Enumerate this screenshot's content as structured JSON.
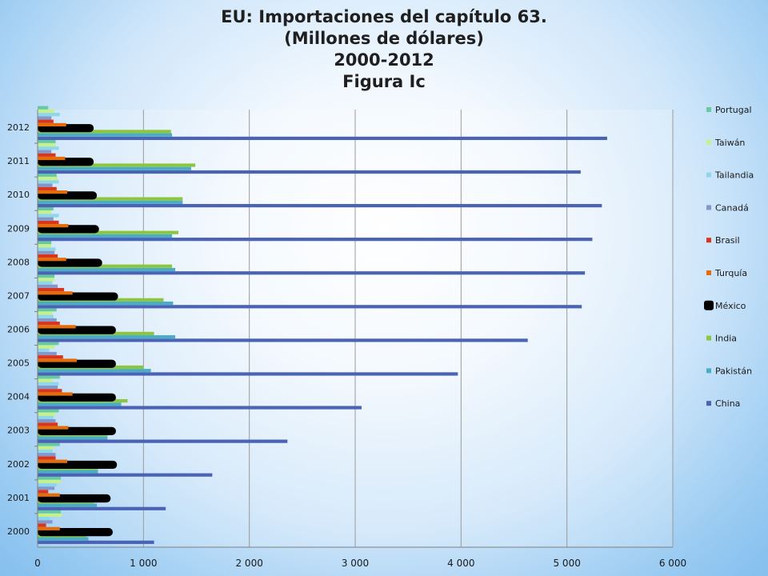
{
  "chart_data": {
    "type": "bar",
    "orientation": "horizontal",
    "title_lines": [
      "EU: Importaciones del capítulo 63.",
      "(Millones de dólares)",
      "2000-2012",
      "Figura Ic"
    ],
    "xlabel": "",
    "ylabel": "",
    "xlim": [
      0,
      6000
    ],
    "x_ticks": [
      0,
      1000,
      2000,
      3000,
      4000,
      5000,
      6000
    ],
    "x_tick_labels": [
      "0",
      "1 000",
      "2 000",
      "3 000",
      "4 000",
      "5 000",
      "6 000"
    ],
    "grid": "vertical",
    "legend_position": "right",
    "categories": [
      "2000",
      "2001",
      "2002",
      "2003",
      "2004",
      "2005",
      "2006",
      "2007",
      "2008",
      "2009",
      "2010",
      "2011",
      "2012"
    ],
    "series": [
      {
        "name": "China",
        "color": "#4a63b5",
        "values": [
          1100,
          1210,
          1650,
          2360,
          3060,
          3970,
          4630,
          5140,
          5170,
          5240,
          5330,
          5130,
          5380
        ]
      },
      {
        "name": "Pakistán",
        "color": "#4bacc6",
        "values": [
          480,
          560,
          570,
          660,
          790,
          1070,
          1300,
          1280,
          1300,
          1270,
          1370,
          1450,
          1270
        ]
      },
      {
        "name": "India",
        "color": "#8cc63f",
        "values": [
          460,
          530,
          570,
          660,
          850,
          1000,
          1100,
          1190,
          1270,
          1330,
          1370,
          1490,
          1260
        ]
      },
      {
        "name": "México",
        "color": "#000000",
        "values": [
          710,
          690,
          750,
          740,
          740,
          740,
          740,
          760,
          610,
          580,
          560,
          530,
          530
        ]
      },
      {
        "name": "Turquía",
        "color": "#e46c0a",
        "values": [
          210,
          210,
          280,
          290,
          330,
          370,
          360,
          330,
          270,
          290,
          280,
          260,
          270
        ]
      },
      {
        "name": "Brasil",
        "color": "#d9341c",
        "values": [
          80,
          100,
          170,
          190,
          230,
          240,
          210,
          250,
          190,
          200,
          180,
          170,
          150
        ]
      },
      {
        "name": "Canadá",
        "color": "#8497c8",
        "values": [
          140,
          160,
          170,
          170,
          190,
          180,
          180,
          190,
          160,
          150,
          140,
          130,
          130
        ]
      },
      {
        "name": "Tailandia",
        "color": "#8fd6ec",
        "values": [
          120,
          180,
          140,
          150,
          200,
          110,
          150,
          140,
          170,
          200,
          200,
          200,
          210
        ]
      },
      {
        "name": "Taiwán",
        "color": "#c6f08a",
        "values": [
          230,
          220,
          150,
          170,
          140,
          160,
          140,
          160,
          130,
          130,
          190,
          170,
          160
        ]
      },
      {
        "name": "Portugal",
        "color": "#66c9a3",
        "values": [
          220,
          220,
          210,
          200,
          210,
          200,
          180,
          160,
          130,
          150,
          180,
          170,
          100
        ]
      }
    ]
  }
}
